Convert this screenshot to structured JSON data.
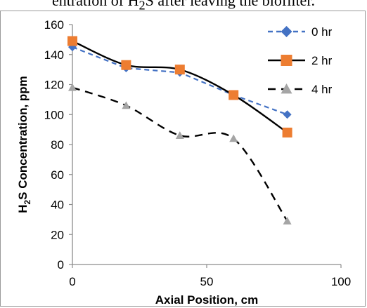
{
  "caption": {
    "text_before": "entration of H",
    "subscript": "2",
    "text_after": "S after leaving the biofilter."
  },
  "chart_data": {
    "type": "line",
    "xlabel": "Axial Position,  cm",
    "ylabel": {
      "prefix": "H",
      "sub": "2",
      "suffix": "S Concentration, ppm"
    },
    "xlim": [
      0,
      100
    ],
    "ylim": [
      0,
      160
    ],
    "xticks": [
      0,
      50,
      100
    ],
    "yticks": [
      0,
      20,
      40,
      60,
      80,
      100,
      120,
      140,
      160
    ],
    "grid": false,
    "legend_position": "top-right",
    "series": [
      {
        "name": "0 hr",
        "x": [
          0,
          20,
          40,
          60,
          80
        ],
        "values": [
          145,
          131,
          128,
          113,
          100
        ],
        "color": "#4472c4",
        "marker": "diamond",
        "dash": "short-dash",
        "smooth": false
      },
      {
        "name": "2 hr",
        "x": [
          0,
          20,
          40,
          60,
          80
        ],
        "values": [
          149,
          133,
          130,
          113,
          88
        ],
        "color": "#000000",
        "marker_color": "#ed7d31",
        "marker": "square",
        "dash": "solid",
        "smooth": true
      },
      {
        "name": "4 hr",
        "x": [
          0,
          20,
          40,
          60,
          80
        ],
        "values": [
          118,
          106,
          86,
          84,
          29
        ],
        "color": "#000000",
        "marker_color": "#a5a5a5",
        "marker": "triangle",
        "dash": "long-dash",
        "smooth": true
      }
    ]
  }
}
